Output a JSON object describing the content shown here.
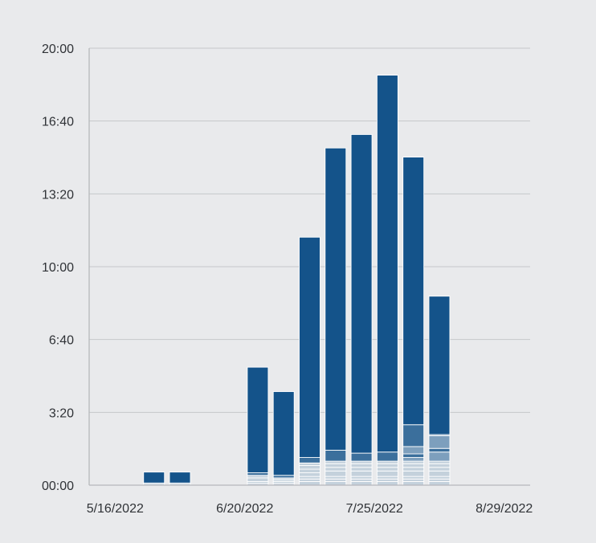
{
  "chart_data": {
    "type": "bar",
    "stacked": true,
    "x_unit": "week_start_date",
    "y_format": "hh:mm",
    "x": [
      "5/23/2022",
      "5/30/2022",
      "6/6/2022",
      "6/13/2022",
      "6/20/2022",
      "6/27/2022",
      "7/4/2022",
      "7/11/2022",
      "7/18/2022",
      "7/25/2022",
      "8/1/2022",
      "8/8/2022"
    ],
    "xlim": [
      "5/9/2022",
      "9/5/2022"
    ],
    "ylim": [
      "00:00",
      "20:00"
    ],
    "y_ticks": [
      "00:00",
      "3:20",
      "6:40",
      "10:00",
      "13:20",
      "16:40",
      "20:00"
    ],
    "x_ticks": [
      "5/16/2022",
      "6/20/2022",
      "7/25/2022",
      "8/29/2022"
    ],
    "grid": true,
    "colors": {
      "background": "#e9eaec",
      "primary_series": "#14538a",
      "secondary_series": "#3b6f9c",
      "tertiary_series": "#7d9fbd",
      "light_series": "#c4d1dc",
      "segment_divider": "#ffffff",
      "gridline": "#c5c7ca",
      "axis_line": "#b6b8bb",
      "tick_text": "#2f3236"
    },
    "series": [
      {
        "values": [
          "00:30",
          "00:30",
          "00:00",
          "00:00",
          "04:50",
          "03:50",
          "10:05",
          "13:50",
          "14:35",
          "17:15",
          "12:15",
          "06:20"
        ]
      },
      {
        "values": [
          "00:03",
          "00:03",
          "00:00",
          "00:00",
          "00:07",
          "00:07",
          "00:15",
          "00:30",
          "00:22",
          "00:25",
          "01:00",
          "00:03"
        ]
      },
      {
        "values": [
          "00:00",
          "00:00",
          "00:00",
          "00:00",
          "00:00",
          "00:00",
          "00:00",
          "00:00",
          "00:00",
          "00:00",
          "00:20",
          "00:35"
        ]
      },
      {
        "values": [
          "00:00",
          "00:00",
          "00:00",
          "00:00",
          "00:00",
          "00:00",
          "00:00",
          "00:00",
          "00:00",
          "00:00",
          "00:10",
          "00:10"
        ]
      },
      {
        "values": [
          "00:00",
          "00:00",
          "00:00",
          "00:00",
          "00:00",
          "00:00",
          "00:00",
          "00:00",
          "00:00",
          "00:00",
          "00:10",
          "00:25"
        ]
      },
      {
        "values": [
          "00:00",
          "00:00",
          "00:00",
          "00:00",
          "00:00",
          "00:00",
          "00:07",
          "00:07",
          "00:07",
          "00:07",
          "00:07",
          "00:07"
        ]
      },
      {
        "values": [
          "00:00",
          "00:00",
          "00:00",
          "00:00",
          "00:07",
          "00:05",
          "00:10",
          "00:10",
          "00:10",
          "00:10",
          "00:10",
          "00:10"
        ]
      },
      {
        "values": [
          "00:00",
          "00:00",
          "00:00",
          "00:00",
          "00:10",
          "00:05",
          "00:10",
          "00:10",
          "00:10",
          "00:10",
          "00:10",
          "00:10"
        ]
      },
      {
        "values": [
          "00:00",
          "00:00",
          "00:00",
          "00:00",
          "00:00",
          "00:00",
          "00:10",
          "00:15",
          "00:15",
          "00:15",
          "00:15",
          "00:15"
        ]
      },
      {
        "values": [
          "00:00",
          "00:00",
          "00:00",
          "00:00",
          "00:00",
          "00:00",
          "00:07",
          "00:07",
          "00:07",
          "00:07",
          "00:07",
          "00:07"
        ]
      },
      {
        "values": [
          "00:00",
          "00:00",
          "00:00",
          "00:00",
          "00:05",
          "00:05",
          "00:07",
          "00:07",
          "00:07",
          "00:07",
          "00:07",
          "00:07"
        ]
      },
      {
        "values": [
          "00:03",
          "00:03",
          "00:00",
          "00:00",
          "00:05",
          "00:05",
          "00:10",
          "00:10",
          "00:10",
          "00:10",
          "00:10",
          "00:10"
        ]
      }
    ]
  }
}
